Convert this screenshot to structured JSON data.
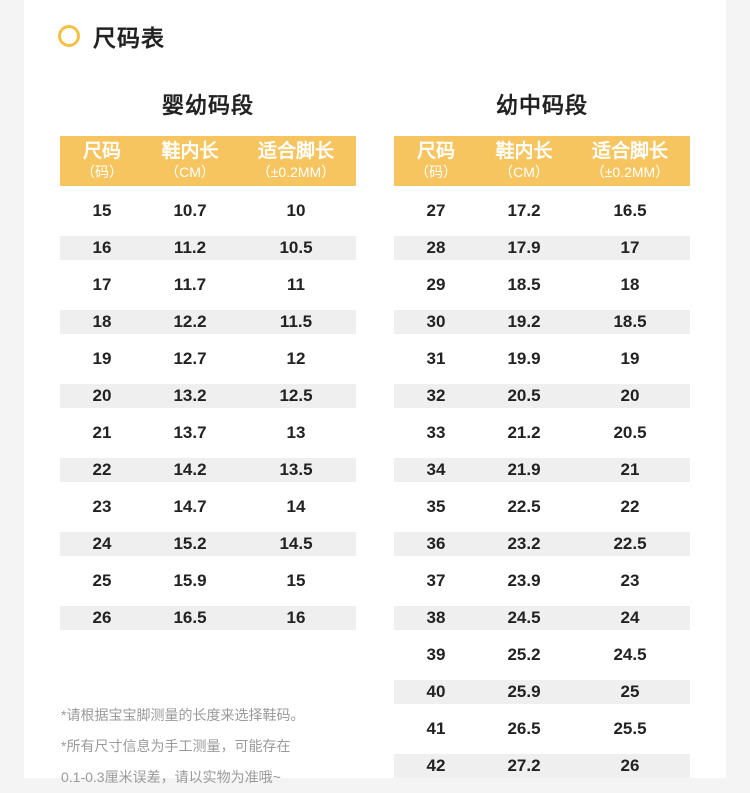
{
  "header": {
    "title": "尺码表"
  },
  "columns": [
    {
      "main": "尺码",
      "sub": "（码）"
    },
    {
      "main": "鞋内长",
      "sub": "（CM）"
    },
    {
      "main": "适合脚长",
      "sub": "（±0.2MM）"
    }
  ],
  "tables": [
    {
      "title": "婴幼码段",
      "rows": [
        [
          "15",
          "10.7",
          "10"
        ],
        [
          "16",
          "11.2",
          "10.5"
        ],
        [
          "17",
          "11.7",
          "11"
        ],
        [
          "18",
          "12.2",
          "11.5"
        ],
        [
          "19",
          "12.7",
          "12"
        ],
        [
          "20",
          "13.2",
          "12.5"
        ],
        [
          "21",
          "13.7",
          "13"
        ],
        [
          "22",
          "14.2",
          "13.5"
        ],
        [
          "23",
          "14.7",
          "14"
        ],
        [
          "24",
          "15.2",
          "14.5"
        ],
        [
          "25",
          "15.9",
          "15"
        ],
        [
          "26",
          "16.5",
          "16"
        ]
      ]
    },
    {
      "title": "幼中码段",
      "rows": [
        [
          "27",
          "17.2",
          "16.5"
        ],
        [
          "28",
          "17.9",
          "17"
        ],
        [
          "29",
          "18.5",
          "18"
        ],
        [
          "30",
          "19.2",
          "18.5"
        ],
        [
          "31",
          "19.9",
          "19"
        ],
        [
          "32",
          "20.5",
          "20"
        ],
        [
          "33",
          "21.2",
          "20.5"
        ],
        [
          "34",
          "21.9",
          "21"
        ],
        [
          "35",
          "22.5",
          "22"
        ],
        [
          "36",
          "23.2",
          "22.5"
        ],
        [
          "37",
          "23.9",
          "23"
        ],
        [
          "38",
          "24.5",
          "24"
        ],
        [
          "39",
          "25.2",
          "24.5"
        ],
        [
          "40",
          "25.9",
          "25"
        ],
        [
          "41",
          "26.5",
          "25.5"
        ],
        [
          "42",
          "27.2",
          "26"
        ]
      ]
    }
  ],
  "notes": [
    "*请根据宝宝脚测量的长度来选择鞋码。",
    "*所有尺寸信息为手工测量，可能存在",
    "0.1-0.3厘米误差，请以实物为准哦~"
  ],
  "colors": {
    "accent": "#f6c560",
    "stripe": "#efefef"
  }
}
